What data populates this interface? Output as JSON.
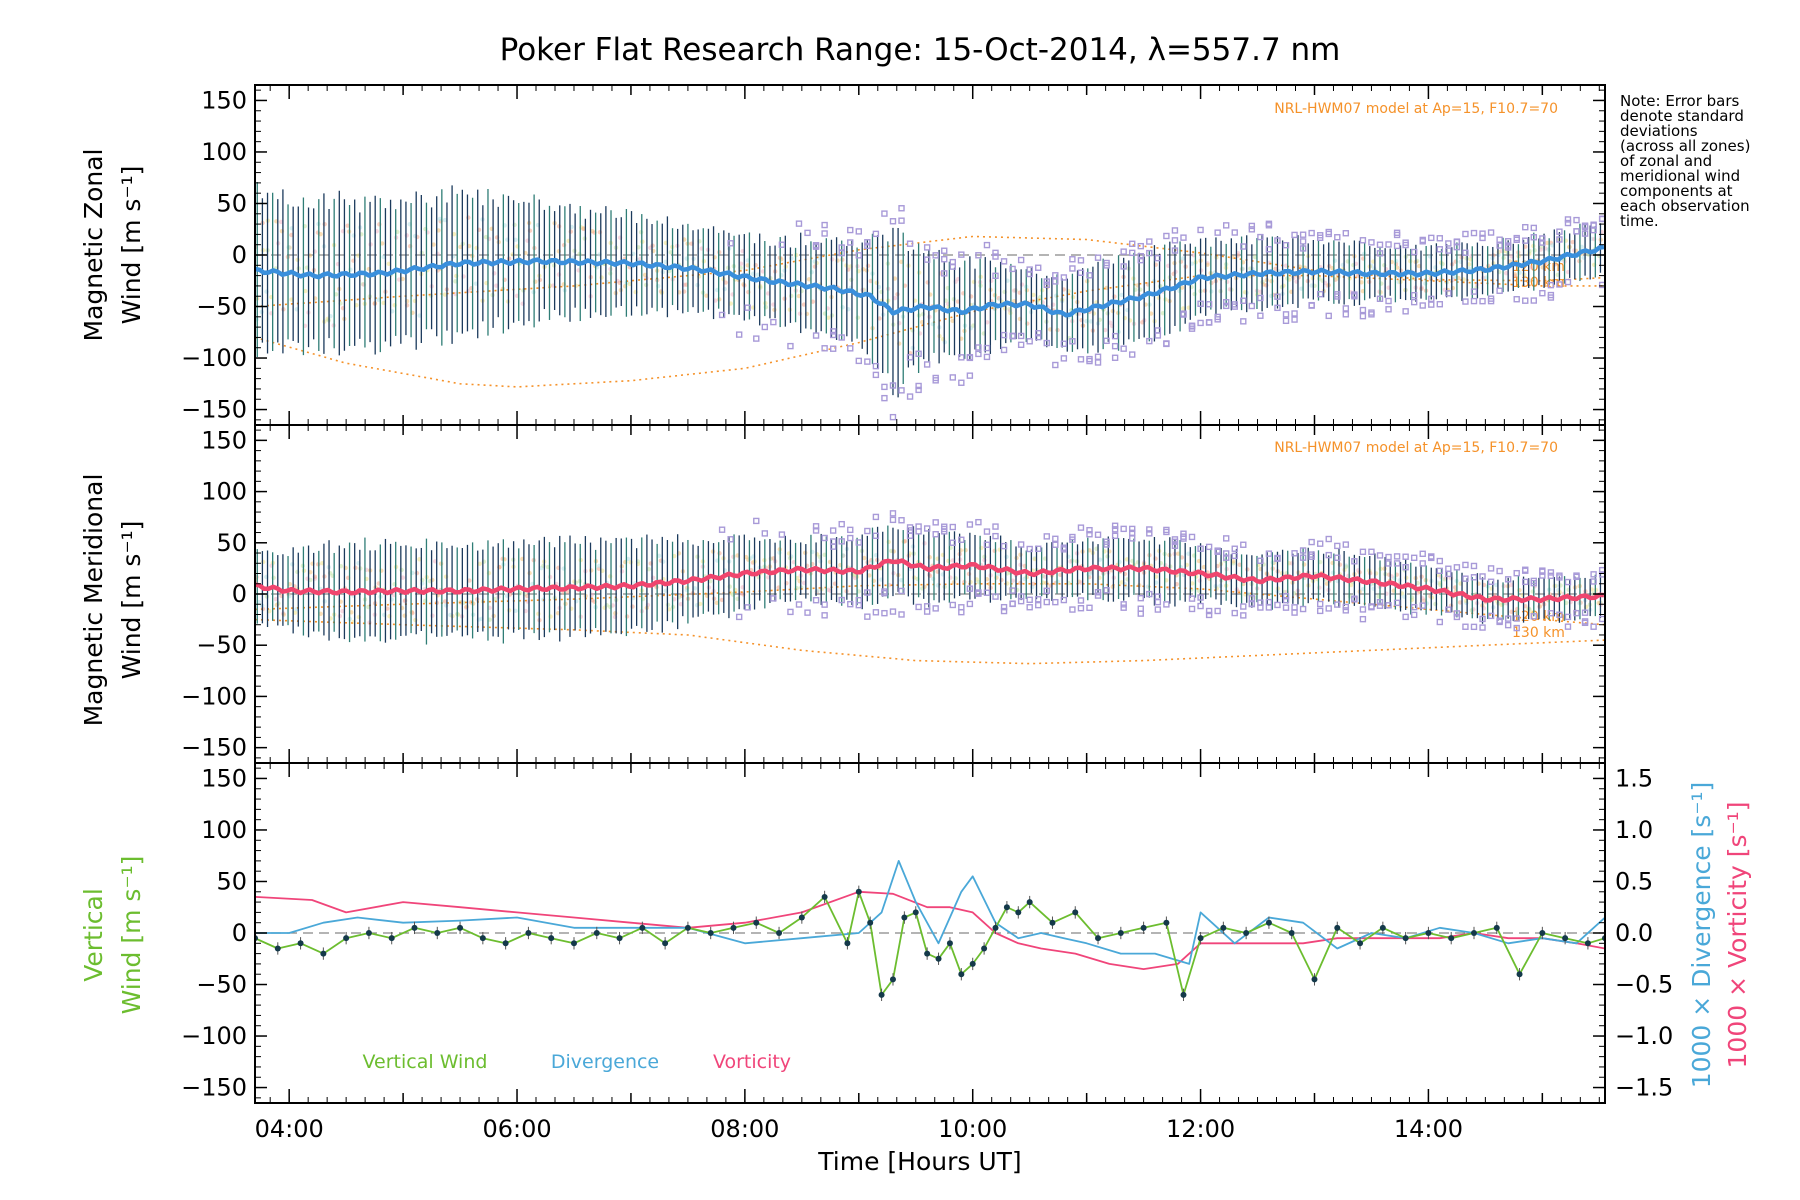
{
  "title": "Poker Flat Research Range: 15-Oct-2014, λ=557.7 nm",
  "note_lines": [
    "Note: Error bars",
    "denote standard",
    "deviations",
    "(across all zones)",
    "of zonal and",
    "meridional wind",
    "components at",
    "each observation",
    "time."
  ],
  "model_label": "NRL-HWM07 model at Ap=15, F10.7=70",
  "model_alt_labels": [
    "120 km",
    "130 km"
  ],
  "xlabel": "Time [Hours UT]",
  "colors": {
    "zonal": "#3a8fdc",
    "meridional": "#f0456e",
    "vertical": "#6cbd2f",
    "divergence": "#4aa8d8",
    "vorticity": "#f0457a",
    "model": "#f5922a",
    "errorbar": "#1b3a5c",
    "scatter": "#a89ad8"
  },
  "chart_data": [
    {
      "type": "line",
      "name": "zonal",
      "ylabel_line1": "Magnetic Zonal",
      "ylabel_line2": "Wind [m s⁻¹]",
      "xlim": [
        3.7,
        15.55
      ],
      "ylim": [
        -165,
        165
      ],
      "yticks": [
        -150,
        -100,
        -50,
        0,
        50,
        100,
        150
      ],
      "mean": {
        "x": [
          3.7,
          4.2,
          4.8,
          5.5,
          6.2,
          7.0,
          7.6,
          8.2,
          8.8,
          9.1,
          9.3,
          9.6,
          9.9,
          10.2,
          10.5,
          10.8,
          11.1,
          11.5,
          11.8,
          12.0,
          12.5,
          13.0,
          13.5,
          14.0,
          14.5,
          15.0,
          15.55
        ],
        "y": [
          -15,
          -20,
          -18,
          -8,
          -6,
          -8,
          -14,
          -25,
          -33,
          -40,
          -55,
          -50,
          -55,
          -48,
          -48,
          -58,
          -50,
          -40,
          -30,
          -22,
          -18,
          -16,
          -18,
          -18,
          -14,
          -6,
          7
        ]
      },
      "spread": {
        "x": [
          3.7,
          4.5,
          5.2,
          6.0,
          7.0,
          8.0,
          9.0,
          9.3,
          9.6,
          10.0,
          10.5,
          11.0,
          11.5,
          12.0,
          13.0,
          14.0,
          15.0,
          15.55
        ],
        "sd": [
          75,
          70,
          70,
          60,
          45,
          40,
          45,
          80,
          50,
          45,
          30,
          40,
          45,
          35,
          30,
          25,
          25,
          25
        ]
      },
      "model_curves": [
        {
          "label": "upper",
          "x": [
            3.7,
            5.0,
            6.5,
            8.0,
            9.0,
            10.0,
            11.0,
            12.0,
            13.0,
            14.0,
            15.0,
            15.55
          ],
          "y": [
            -50,
            -40,
            -30,
            -15,
            5,
            18,
            15,
            2,
            -15,
            -24,
            -25,
            -22
          ]
        },
        {
          "label": "lower",
          "x": [
            3.7,
            4.5,
            5.5,
            6.0,
            7.0,
            8.0,
            9.0,
            10.0,
            11.0,
            12.0,
            13.0,
            14.0,
            15.0,
            15.55
          ],
          "y": [
            -80,
            -105,
            -125,
            -128,
            -122,
            -110,
            -85,
            -55,
            -35,
            -20,
            -20,
            -25,
            -30,
            -30
          ]
        }
      ]
    },
    {
      "type": "line",
      "name": "meridional",
      "ylabel_line1": "Magnetic Meridional",
      "ylabel_line2": "Wind [m s⁻¹]",
      "xlim": [
        3.7,
        15.55
      ],
      "ylim": [
        -165,
        165
      ],
      "yticks": [
        -150,
        -100,
        -50,
        0,
        50,
        100,
        150
      ],
      "mean": {
        "x": [
          3.7,
          4.0,
          4.5,
          5.0,
          5.5,
          6.0,
          6.5,
          7.0,
          7.5,
          8.0,
          8.5,
          9.0,
          9.3,
          9.6,
          10.0,
          10.5,
          11.0,
          11.5,
          12.0,
          12.5,
          13.0,
          13.5,
          14.0,
          14.5,
          15.0,
          15.55
        ],
        "y": [
          8,
          3,
          2,
          3,
          3,
          5,
          6,
          8,
          13,
          20,
          24,
          22,
          33,
          25,
          28,
          20,
          25,
          25,
          20,
          13,
          18,
          12,
          5,
          -5,
          -5,
          -2
        ]
      },
      "spread": {
        "x": [
          3.7,
          4.5,
          5.5,
          6.5,
          7.5,
          8.5,
          9.5,
          10.5,
          11.5,
          12.5,
          13.5,
          14.5,
          15.55
        ],
        "sd": [
          35,
          45,
          45,
          45,
          40,
          30,
          35,
          25,
          30,
          25,
          25,
          20,
          20
        ]
      },
      "model_curves": [
        {
          "label": "upper",
          "x": [
            3.7,
            5.0,
            6.5,
            8.0,
            9.0,
            10.0,
            11.0,
            12.0,
            13.0,
            14.0,
            15.0,
            15.55
          ],
          "y": [
            -15,
            -10,
            -5,
            2,
            8,
            10,
            10,
            5,
            -5,
            -15,
            -25,
            -30
          ]
        },
        {
          "label": "lower",
          "x": [
            3.7,
            5.0,
            6.5,
            7.5,
            8.5,
            9.5,
            10.5,
            11.5,
            12.5,
            13.5,
            14.5,
            15.55
          ],
          "y": [
            -25,
            -30,
            -35,
            -40,
            -55,
            -65,
            -68,
            -65,
            -60,
            -55,
            -50,
            -45
          ]
        }
      ]
    },
    {
      "type": "line",
      "name": "vertical",
      "ylabel_line1": "Vertical",
      "ylabel_line2": "Wind [m s⁻¹]",
      "y2label_div": "1000 × Divergence [s⁻¹]",
      "y2label_vort": "1000 × Vorticity [s⁻¹]",
      "xlim": [
        3.7,
        15.55
      ],
      "ylim": [
        -165,
        165
      ],
      "yticks": [
        -150,
        -100,
        -50,
        0,
        50,
        100,
        150
      ],
      "y2lim": [
        -1.65,
        1.65
      ],
      "y2ticks": [
        -1.5,
        -1.0,
        -0.5,
        0.0,
        0.5,
        1.0,
        1.5
      ],
      "y2ticklabels": [
        "−1.5",
        "−1.0",
        "−0.5",
        "0.0",
        "0.5",
        "1.0",
        "1.5"
      ],
      "xticks": [
        4,
        6,
        8,
        10,
        12,
        14
      ],
      "xticklabels": [
        "04:00",
        "06:00",
        "08:00",
        "10:00",
        "12:00",
        "14:00"
      ],
      "legend": [
        "Vertical Wind",
        "Divergence",
        "Vorticity"
      ],
      "series": [
        {
          "name": "Vertical Wind",
          "axis": "left",
          "x": [
            3.7,
            3.9,
            4.1,
            4.3,
            4.5,
            4.7,
            4.9,
            5.1,
            5.3,
            5.5,
            5.7,
            5.9,
            6.1,
            6.3,
            6.5,
            6.7,
            6.9,
            7.1,
            7.3,
            7.5,
            7.7,
            7.9,
            8.1,
            8.3,
            8.5,
            8.7,
            8.9,
            9.0,
            9.1,
            9.2,
            9.3,
            9.4,
            9.5,
            9.6,
            9.7,
            9.8,
            9.9,
            10.0,
            10.1,
            10.2,
            10.3,
            10.4,
            10.5,
            10.7,
            10.9,
            11.1,
            11.3,
            11.5,
            11.7,
            11.85,
            12.0,
            12.2,
            12.4,
            12.6,
            12.8,
            13.0,
            13.2,
            13.4,
            13.6,
            13.8,
            14.0,
            14.2,
            14.4,
            14.6,
            14.8,
            15.0,
            15.2,
            15.4,
            15.55
          ],
          "y": [
            -5,
            -15,
            -10,
            -20,
            -5,
            0,
            -5,
            5,
            0,
            5,
            -5,
            -10,
            0,
            -5,
            -10,
            0,
            -5,
            5,
            -10,
            5,
            0,
            5,
            10,
            0,
            15,
            35,
            -10,
            40,
            10,
            -60,
            -45,
            15,
            20,
            -20,
            -25,
            -10,
            -40,
            -30,
            -15,
            5,
            25,
            20,
            30,
            10,
            20,
            -5,
            0,
            5,
            10,
            -60,
            -5,
            5,
            0,
            10,
            0,
            -45,
            5,
            -10,
            5,
            -5,
            0,
            -5,
            0,
            5,
            -40,
            0,
            -5,
            -10,
            -5
          ]
        },
        {
          "name": "Divergence",
          "axis": "right",
          "x": [
            3.7,
            4.0,
            4.3,
            4.6,
            5.0,
            5.5,
            6.0,
            6.5,
            7.0,
            7.5,
            8.0,
            8.5,
            9.0,
            9.2,
            9.35,
            9.5,
            9.7,
            9.9,
            10.0,
            10.2,
            10.4,
            10.6,
            10.8,
            11.0,
            11.3,
            11.6,
            11.9,
            12.0,
            12.3,
            12.6,
            12.9,
            13.2,
            13.5,
            13.8,
            14.1,
            14.4,
            14.7,
            15.0,
            15.3,
            15.55
          ],
          "y": [
            0.0,
            0.0,
            0.1,
            0.15,
            0.1,
            0.12,
            0.15,
            0.05,
            0.05,
            0.05,
            -0.1,
            -0.05,
            0.0,
            0.2,
            0.7,
            0.3,
            -0.1,
            0.4,
            0.55,
            0.1,
            -0.05,
            0.0,
            -0.05,
            -0.1,
            -0.2,
            -0.2,
            -0.3,
            0.2,
            -0.1,
            0.15,
            0.1,
            -0.15,
            0.0,
            -0.05,
            0.05,
            0.0,
            -0.1,
            -0.05,
            -0.1,
            0.15
          ]
        },
        {
          "name": "Vorticity",
          "axis": "right",
          "x": [
            3.7,
            4.2,
            4.5,
            5.0,
            5.5,
            6.0,
            6.5,
            7.0,
            7.5,
            8.0,
            8.5,
            9.0,
            9.3,
            9.6,
            9.8,
            10.0,
            10.2,
            10.4,
            10.6,
            10.9,
            11.2,
            11.5,
            11.8,
            12.0,
            12.3,
            12.6,
            12.9,
            13.2,
            13.5,
            13.8,
            14.1,
            14.4,
            14.7,
            15.0,
            15.3,
            15.55
          ],
          "y": [
            0.35,
            0.32,
            0.2,
            0.3,
            0.25,
            0.2,
            0.15,
            0.1,
            0.05,
            0.1,
            0.2,
            0.4,
            0.38,
            0.25,
            0.25,
            0.2,
            0.0,
            -0.1,
            -0.15,
            -0.2,
            -0.3,
            -0.35,
            -0.3,
            -0.1,
            -0.1,
            -0.1,
            -0.1,
            -0.05,
            -0.05,
            -0.05,
            -0.05,
            0.0,
            -0.05,
            -0.05,
            -0.1,
            -0.15
          ]
        }
      ]
    }
  ]
}
